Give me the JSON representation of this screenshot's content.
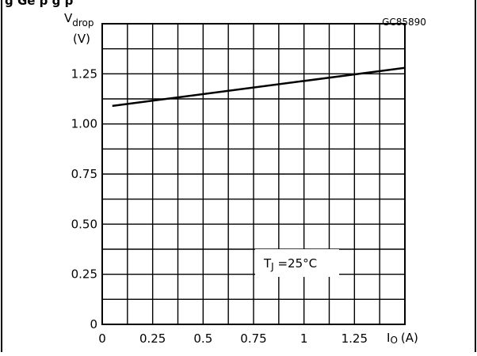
{
  "header": {
    "title_fragment": "g  Ge  p  g  p",
    "code": "GC85890"
  },
  "chart_data": {
    "type": "line",
    "title": "",
    "ylabel": {
      "main": "V",
      "sub": "drop",
      "unit": "(V)"
    },
    "xlabel": {
      "main": "I",
      "sub": "O",
      "unit": "(A)"
    },
    "xlim": [
      0,
      1.5
    ],
    "ylim": [
      0,
      1.5
    ],
    "x_ticks": [
      0,
      0.25,
      0.5,
      0.75,
      1,
      1.25
    ],
    "x_tick_labels": [
      "0",
      "0.25",
      "0.5",
      "0.75",
      "1",
      "1.25"
    ],
    "y_ticks": [
      0,
      0.25,
      0.5,
      0.75,
      1.0,
      1.25
    ],
    "y_tick_labels": [
      "0",
      "0.25",
      "0.50",
      "0.75",
      "1.00",
      "1.25"
    ],
    "grid": true,
    "grid_x_step": 0.125,
    "grid_y_step": 0.125,
    "series": [
      {
        "x": [
          0.05,
          1.5
        ],
        "y": [
          1.09,
          1.28
        ]
      }
    ],
    "annotation": {
      "main": "T",
      "sub": "J",
      "rest": " =25°C"
    }
  }
}
